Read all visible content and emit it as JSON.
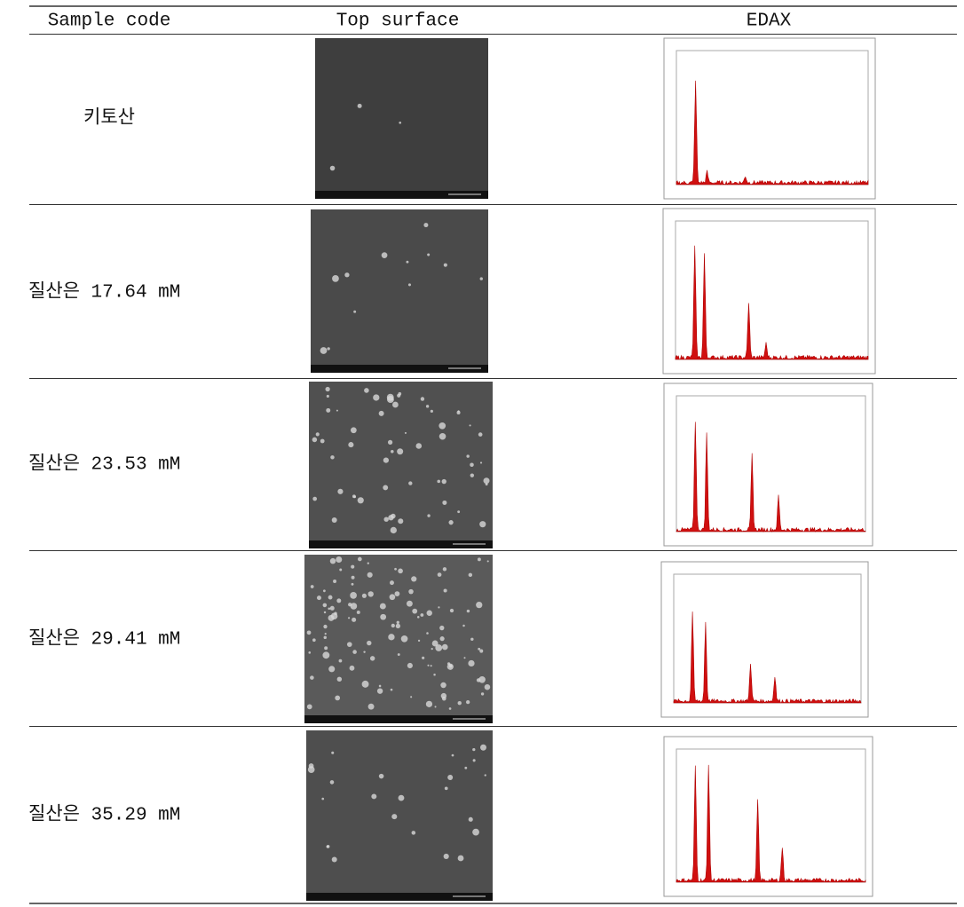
{
  "header": {
    "columns": [
      "Sample code",
      "Top surface",
      "EDAX"
    ]
  },
  "rows": [
    {
      "sample_code": "키토산"
    },
    {
      "sample_code": "질산은 17.64 mM"
    },
    {
      "sample_code": "질산은 23.53 mM"
    },
    {
      "sample_code": "질산은 29.41 mM"
    },
    {
      "sample_code": "질산은 35.29 mM"
    }
  ]
}
